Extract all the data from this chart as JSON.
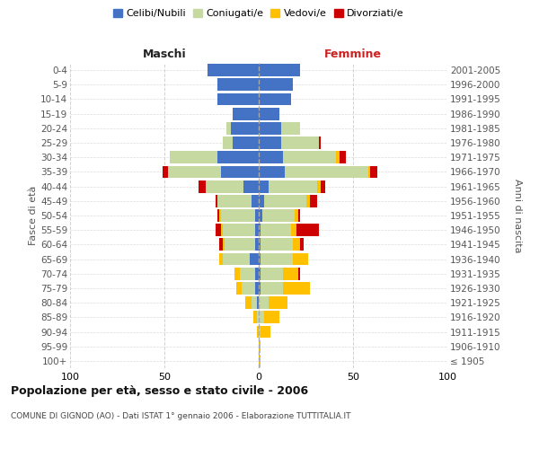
{
  "age_groups": [
    "100+",
    "95-99",
    "90-94",
    "85-89",
    "80-84",
    "75-79",
    "70-74",
    "65-69",
    "60-64",
    "55-59",
    "50-54",
    "45-49",
    "40-44",
    "35-39",
    "30-34",
    "25-29",
    "20-24",
    "15-19",
    "10-14",
    "5-9",
    "0-4"
  ],
  "birth_years": [
    "≤ 1905",
    "1906-1910",
    "1911-1915",
    "1916-1920",
    "1921-1925",
    "1926-1930",
    "1931-1935",
    "1936-1940",
    "1941-1945",
    "1946-1950",
    "1951-1955",
    "1956-1960",
    "1961-1965",
    "1966-1970",
    "1971-1975",
    "1976-1980",
    "1981-1985",
    "1986-1990",
    "1991-1995",
    "1996-2000",
    "2001-2005"
  ],
  "colors": {
    "celibe": "#4472c4",
    "coniugato": "#c5d9a0",
    "vedovo": "#ffc000",
    "divorziato": "#cc0000"
  },
  "maschi": {
    "celibe": [
      0,
      0,
      0,
      0,
      1,
      2,
      2,
      5,
      2,
      2,
      2,
      4,
      8,
      20,
      22,
      14,
      15,
      14,
      22,
      22,
      27
    ],
    "coniugato": [
      0,
      0,
      0,
      1,
      3,
      7,
      8,
      14,
      16,
      17,
      18,
      18,
      20,
      28,
      25,
      5,
      2,
      0,
      0,
      0,
      0
    ],
    "vedovo": [
      0,
      0,
      1,
      2,
      3,
      3,
      3,
      2,
      1,
      1,
      1,
      0,
      0,
      0,
      0,
      0,
      0,
      0,
      0,
      0,
      0
    ],
    "divorziato": [
      0,
      0,
      0,
      0,
      0,
      0,
      0,
      0,
      2,
      3,
      1,
      1,
      4,
      3,
      0,
      0,
      0,
      0,
      0,
      0,
      0
    ]
  },
  "femmine": {
    "nubile": [
      0,
      0,
      0,
      0,
      0,
      1,
      1,
      1,
      1,
      1,
      2,
      3,
      5,
      14,
      13,
      12,
      12,
      11,
      17,
      18,
      22
    ],
    "coniugata": [
      0,
      0,
      1,
      3,
      5,
      12,
      12,
      17,
      17,
      16,
      17,
      22,
      26,
      44,
      28,
      20,
      10,
      0,
      0,
      0,
      0
    ],
    "vedova": [
      1,
      1,
      5,
      8,
      10,
      14,
      8,
      8,
      4,
      3,
      2,
      2,
      2,
      1,
      2,
      0,
      0,
      0,
      0,
      0,
      0
    ],
    "divorziata": [
      0,
      0,
      0,
      0,
      0,
      0,
      1,
      0,
      2,
      12,
      1,
      4,
      2,
      4,
      3,
      1,
      0,
      0,
      0,
      0,
      0
    ]
  },
  "xlim": [
    -100,
    100
  ],
  "xticks": [
    -100,
    -50,
    0,
    50,
    100
  ],
  "xticklabels": [
    "100",
    "50",
    "0",
    "50",
    "100"
  ],
  "title": "Popolazione per età, sesso e stato civile - 2006",
  "subtitle": "COMUNE DI GIGNOD (AO) - Dati ISTAT 1° gennaio 2006 - Elaborazione TUTTITALIA.IT",
  "ylabel_left": "Fasce di età",
  "ylabel_right": "Anni di nascita",
  "label_maschi": "Maschi",
  "label_femmine": "Femmine",
  "legend_labels": [
    "Celibi/Nubili",
    "Coniugati/e",
    "Vedovi/e",
    "Divorziati/e"
  ],
  "bg_color": "#ffffff",
  "grid_color": "#cccccc",
  "bar_height": 0.85
}
